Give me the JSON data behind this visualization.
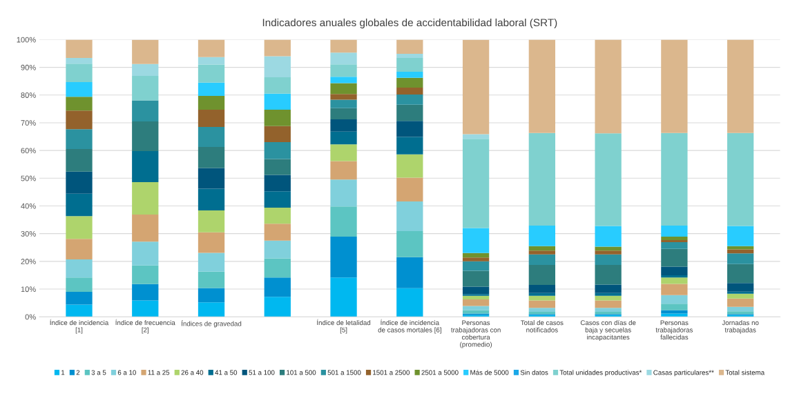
{
  "chart_data": {
    "type": "bar",
    "stacked": true,
    "title": "Indicadores anuales globales de accidentabilidad laboral (SRT)",
    "categories": [
      "Índice de incidencia\n[1]",
      "Índice de frecuencia\n[2]",
      "Índices de gravedad",
      null,
      "Índice de letalidad\n[5]",
      "Índice de incidencia\nde casos mortales [6]",
      "Personas\ntrabajadoras con\ncobertura\n(promedio)",
      "Total de casos\nnotificados",
      "Casos con días de\nbaja y secuelas\nincapacitantes",
      "Personas\ntrabajadoras\nfallecidas",
      "Jornadas no\ntrabajadas"
    ],
    "ylim": [
      0,
      100
    ],
    "yticks": [
      {
        "value": 0,
        "label": "0%"
      },
      {
        "value": 10,
        "label": "10%"
      },
      {
        "value": 20,
        "label": "20%"
      },
      {
        "value": 30,
        "label": "30%"
      },
      {
        "value": 40,
        "label": "40%"
      },
      {
        "value": 50,
        "label": "50%"
      },
      {
        "value": 60,
        "label": "60%"
      },
      {
        "value": 70,
        "label": "70%"
      },
      {
        "value": 80,
        "label": "80%"
      },
      {
        "value": 90,
        "label": "90%"
      },
      {
        "value": 100,
        "label": "100%"
      }
    ],
    "grid": "y",
    "legend": "bottom",
    "series": [
      {
        "name": "1",
        "color": "#00b8f0",
        "values": [
          4.4,
          5.9,
          5.2,
          7.2,
          14.2,
          10.3,
          0.6,
          0.6,
          0.6,
          1.2,
          0.6
        ]
      },
      {
        "name": "2",
        "color": "#0090d0",
        "values": [
          4.6,
          5.9,
          5.2,
          7.0,
          14.7,
          11.2,
          0.6,
          0.4,
          0.4,
          1.2,
          0.4
        ]
      },
      {
        "name": "3 a 5",
        "color": "#5cc5c2",
        "values": [
          5.2,
          6.7,
          5.9,
          6.9,
          10.9,
          9.4,
          1.2,
          0.8,
          0.8,
          2.3,
          1.0
        ]
      },
      {
        "name": "6 a 10",
        "color": "#80d0dc",
        "values": [
          6.5,
          8.6,
          6.8,
          6.4,
          9.7,
          10.7,
          1.5,
          1.4,
          1.4,
          3.1,
          1.6
        ]
      },
      {
        "name": "11 a 25",
        "color": "#d4a572",
        "values": [
          7.4,
          9.8,
          7.4,
          6.1,
          6.7,
          8.6,
          2.4,
          2.7,
          2.7,
          4.1,
          3.0
        ]
      },
      {
        "name": "26 a 40",
        "color": "#aed46c",
        "values": [
          8.2,
          11.7,
          7.9,
          5.8,
          6.0,
          8.4,
          1.3,
          1.7,
          1.7,
          2.3,
          1.7
        ]
      },
      {
        "name": "41 a 50",
        "color": "#006e90",
        "values": [
          8.1,
          11.2,
          7.8,
          5.9,
          4.6,
          6.3,
          0.6,
          1.0,
          1.0,
          0.8,
          0.8
        ]
      },
      {
        "name": "51 a 100",
        "color": "#00557c",
        "values": [
          8.0,
          0,
          7.5,
          5.9,
          4.4,
          5.8,
          2.7,
          2.9,
          3.0,
          3.1,
          3.1
        ]
      },
      {
        "name": "101 a 500",
        "color": "#2d7d7d",
        "values": [
          8.1,
          10.7,
          7.6,
          5.7,
          4.1,
          5.8,
          5.7,
          7.2,
          7.1,
          6.4,
          6.8
        ]
      },
      {
        "name": "501 a 1500",
        "color": "#2b92a0",
        "values": [
          7.2,
          7.6,
          7.2,
          6.1,
          3.0,
          3.7,
          3.4,
          3.8,
          3.8,
          2.4,
          3.9
        ]
      },
      {
        "name": "1501 a 2500",
        "color": "#93622c",
        "values": [
          6.7,
          0,
          6.2,
          5.8,
          2.1,
          2.5,
          1.4,
          1.4,
          1.4,
          0.8,
          1.4
        ]
      },
      {
        "name": "2501 a 5000",
        "color": "#6f922e",
        "values": [
          5.0,
          0,
          5.0,
          5.9,
          3.9,
          3.5,
          1.6,
          1.6,
          1.4,
          1.2,
          1.2
        ]
      },
      {
        "name": "Más de 5000",
        "color": "#28ccff",
        "values": [
          5.3,
          0,
          4.8,
          5.8,
          2.3,
          2.2,
          9.0,
          7.4,
          7.5,
          4.0,
          7.3
        ]
      },
      {
        "name": "Sin datos",
        "color": "#1aa8e8",
        "values": [
          0,
          0,
          0,
          0,
          0,
          0,
          0,
          0,
          0,
          0,
          0
        ]
      },
      {
        "name": "Total unidades productivas*",
        "color": "#7fd1cf",
        "values": [
          6.6,
          8.8,
          6.5,
          5.9,
          4.5,
          5.0,
          32.2,
          33.4,
          33.4,
          33.4,
          33.5
        ]
      },
      {
        "name": "Casas particulares**",
        "color": "#9cd9e2",
        "values": [
          2.1,
          4.3,
          2.7,
          7.6,
          4.2,
          1.5,
          1.7,
          0,
          0,
          0,
          0
        ]
      },
      {
        "name": "Total sistema",
        "color": "#dbb78d",
        "values": [
          6.6,
          8.7,
          6.3,
          6.0,
          4.7,
          5.1,
          34.0,
          33.7,
          33.8,
          33.7,
          33.7
        ]
      }
    ]
  }
}
